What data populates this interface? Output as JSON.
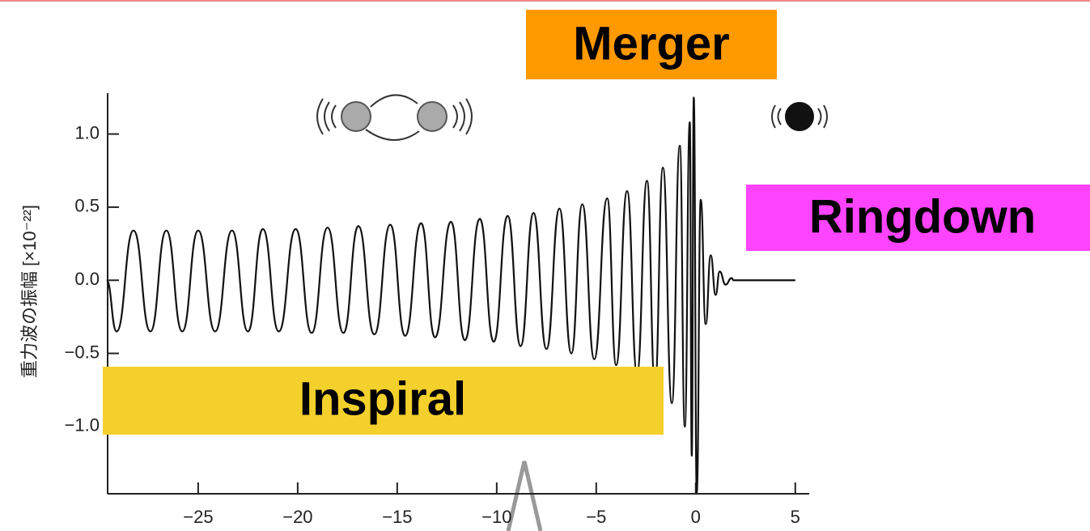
{
  "chart_data": {
    "type": "line",
    "ylabel": "重力波の振幅 [×10⁻²²]",
    "annotations": {
      "merger": "Merger",
      "ringdown": "Ringdown",
      "inspiral": "Inspiral"
    },
    "color": "#111111",
    "xlim": [
      -29.55,
      5.7
    ],
    "ylim": [
      -1.46,
      1.28
    ],
    "xticks": [
      {
        "value": -25,
        "label": "−25"
      },
      {
        "value": -20,
        "label": "−20"
      },
      {
        "value": -15,
        "label": "−15"
      },
      {
        "value": -10,
        "label": "−10"
      },
      {
        "value": -5,
        "label": "−5"
      },
      0,
      5
    ],
    "yticks": [
      {
        "value": -1,
        "label": "−1.0"
      },
      {
        "value": -0.5,
        "label": "−0.5"
      },
      {
        "value": 0,
        "label": "0.0"
      },
      0.5,
      {
        "value": 1,
        "label": "1.0"
      }
    ],
    "x": [
      -29.6,
      -29.1,
      -28.25,
      -27.4,
      -26.6,
      -25.8,
      -25.0,
      -24.15,
      -23.3,
      -22.5,
      -21.75,
      -20.95,
      -20.1,
      -19.3,
      -18.5,
      -17.7,
      -16.95,
      -16.15,
      -15.35,
      -14.6,
      -13.8,
      -13.1,
      -12.3,
      -11.6,
      -10.85,
      -10.15,
      -9.45,
      -8.8,
      -8.15,
      -7.5,
      -6.85,
      -6.25,
      -5.7,
      -5.1,
      -4.45,
      -4.0,
      -3.45,
      -2.95,
      -2.45,
      -2.05,
      -1.65,
      -1.2,
      -0.8,
      -0.55,
      -0.3,
      -0.2,
      -0.1,
      0.05,
      0.25,
      0.5,
      0.75,
      1.0,
      1.2,
      1.5,
      1.8,
      1.9,
      5.0
    ],
    "values": [
      0,
      -0.35,
      0.34,
      -0.35,
      0.34,
      -0.35,
      0.34,
      -0.35,
      0.34,
      -0.35,
      0.35,
      -0.35,
      0.35,
      -0.36,
      0.36,
      -0.36,
      0.37,
      -0.37,
      0.38,
      -0.38,
      0.39,
      -0.39,
      0.4,
      -0.41,
      0.42,
      -0.42,
      0.44,
      -0.45,
      0.46,
      -0.47,
      0.49,
      -0.5,
      0.52,
      -0.54,
      0.56,
      -0.58,
      0.61,
      -0.64,
      0.68,
      -0.72,
      0.77,
      -0.84,
      0.92,
      -1.0,
      1.08,
      -1.2,
      1.25,
      -1.45,
      0.55,
      -0.3,
      0.17,
      -0.1,
      0.06,
      -0.03,
      0.015,
      0,
      0
    ]
  }
}
